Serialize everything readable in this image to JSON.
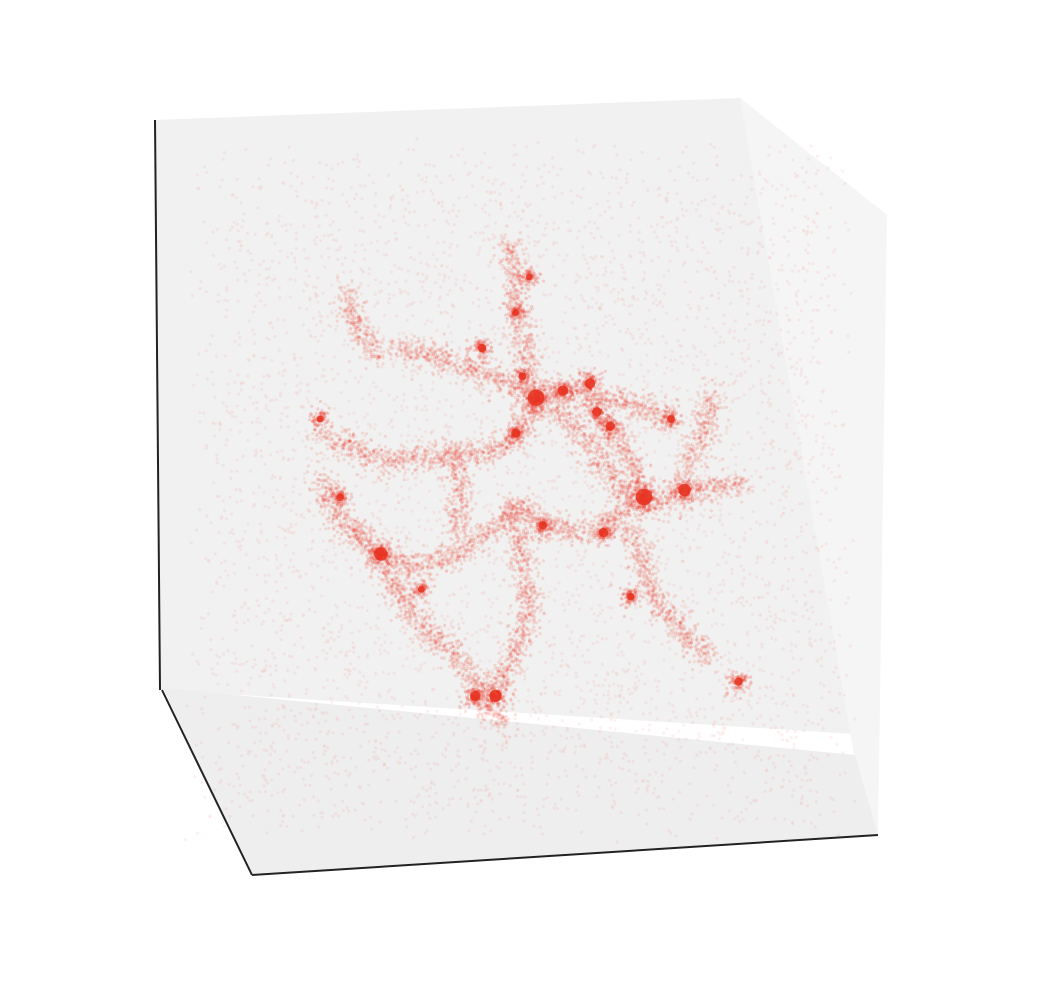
{
  "chart_data": {
    "type": "scatter",
    "projection": "3d",
    "title": "",
    "xlabel": "",
    "ylabel": "",
    "zlabel": "",
    "axis_ticks": "hidden",
    "grid": false,
    "legend": "none",
    "colors": {
      "points": "#e8301f",
      "pane_back": "#f1f1f1",
      "pane_side": "#f5f5f5",
      "pane_floor": "#eeeeee",
      "axis_line": "#222222"
    },
    "point_style": {
      "alpha": 0.06
    },
    "series": [
      {
        "name": "",
        "filaments": [
          {
            "path": [
              [
                0.31,
                0.3
              ],
              [
                0.37,
                0.31
              ],
              [
                0.43,
                0.33
              ],
              [
                0.5,
                0.36
              ],
              [
                0.55,
                0.39
              ]
            ]
          },
          {
            "path": [
              [
                0.48,
                0.15
              ],
              [
                0.49,
                0.22
              ],
              [
                0.5,
                0.28
              ],
              [
                0.51,
                0.34
              ]
            ]
          },
          {
            "path": [
              [
                0.52,
                0.37
              ],
              [
                0.57,
                0.36
              ],
              [
                0.62,
                0.37
              ],
              [
                0.67,
                0.38
              ],
              [
                0.72,
                0.4
              ]
            ]
          },
          {
            "path": [
              [
                0.52,
                0.38
              ],
              [
                0.5,
                0.42
              ],
              [
                0.47,
                0.44
              ],
              [
                0.4,
                0.45
              ],
              [
                0.3,
                0.46
              ],
              [
                0.2,
                0.42
              ]
            ]
          },
          {
            "path": [
              [
                0.56,
                0.39
              ],
              [
                0.6,
                0.44
              ],
              [
                0.63,
                0.48
              ],
              [
                0.66,
                0.51
              ],
              [
                0.7,
                0.52
              ],
              [
                0.75,
                0.5
              ],
              [
                0.83,
                0.49
              ]
            ]
          },
          {
            "path": [
              [
                0.62,
                0.4
              ],
              [
                0.65,
                0.44
              ],
              [
                0.68,
                0.5
              ]
            ]
          },
          {
            "path": [
              [
                0.68,
                0.51
              ],
              [
                0.64,
                0.54
              ],
              [
                0.59,
                0.56
              ],
              [
                0.53,
                0.55
              ],
              [
                0.49,
                0.52
              ]
            ]
          },
          {
            "path": [
              [
                0.49,
                0.52
              ],
              [
                0.45,
                0.56
              ],
              [
                0.4,
                0.59
              ],
              [
                0.34,
                0.61
              ],
              [
                0.28,
                0.59
              ],
              [
                0.25,
                0.55
              ]
            ]
          },
          {
            "path": [
              [
                0.28,
                0.59
              ],
              [
                0.32,
                0.65
              ],
              [
                0.36,
                0.7
              ],
              [
                0.41,
                0.74
              ],
              [
                0.44,
                0.79
              ],
              [
                0.47,
                0.83
              ]
            ]
          },
          {
            "path": [
              [
                0.46,
                0.78
              ],
              [
                0.49,
                0.73
              ],
              [
                0.51,
                0.67
              ],
              [
                0.5,
                0.6
              ],
              [
                0.49,
                0.53
              ]
            ]
          },
          {
            "path": [
              [
                0.26,
                0.57
              ],
              [
                0.22,
                0.53
              ],
              [
                0.2,
                0.48
              ]
            ]
          },
          {
            "path": [
              [
                0.66,
                0.55
              ],
              [
                0.68,
                0.61
              ],
              [
                0.7,
                0.66
              ],
              [
                0.74,
                0.7
              ],
              [
                0.78,
                0.74
              ]
            ]
          },
          {
            "path": [
              [
                0.24,
                0.22
              ],
              [
                0.26,
                0.28
              ],
              [
                0.29,
                0.31
              ]
            ]
          },
          {
            "path": [
              [
                0.4,
                0.45
              ],
              [
                0.41,
                0.51
              ],
              [
                0.4,
                0.56
              ]
            ]
          },
          {
            "path": [
              [
                0.74,
                0.47
              ],
              [
                0.77,
                0.42
              ],
              [
                0.78,
                0.36
              ]
            ]
          }
        ],
        "halos": [
          {
            "x": 0.52,
            "y": 0.37,
            "size": 3.2
          },
          {
            "x": 0.68,
            "y": 0.51,
            "size": 3.2
          },
          {
            "x": 0.74,
            "y": 0.5,
            "size": 2.4
          },
          {
            "x": 0.29,
            "y": 0.59,
            "size": 2.6
          },
          {
            "x": 0.46,
            "y": 0.79,
            "size": 2.4
          },
          {
            "x": 0.43,
            "y": 0.79,
            "size": 2.0
          },
          {
            "x": 0.56,
            "y": 0.36,
            "size": 2.0
          },
          {
            "x": 0.6,
            "y": 0.35,
            "size": 2.0
          },
          {
            "x": 0.61,
            "y": 0.39,
            "size": 1.8
          },
          {
            "x": 0.63,
            "y": 0.41,
            "size": 1.8
          },
          {
            "x": 0.49,
            "y": 0.42,
            "size": 1.8
          },
          {
            "x": 0.62,
            "y": 0.56,
            "size": 1.8
          },
          {
            "x": 0.53,
            "y": 0.55,
            "size": 1.6
          },
          {
            "x": 0.44,
            "y": 0.3,
            "size": 1.6
          },
          {
            "x": 0.5,
            "y": 0.34,
            "size": 1.5
          },
          {
            "x": 0.72,
            "y": 0.4,
            "size": 1.5
          },
          {
            "x": 0.82,
            "y": 0.77,
            "size": 1.6
          },
          {
            "x": 0.23,
            "y": 0.51,
            "size": 1.5
          },
          {
            "x": 0.66,
            "y": 0.65,
            "size": 1.5
          },
          {
            "x": 0.35,
            "y": 0.64,
            "size": 1.3
          },
          {
            "x": 0.2,
            "y": 0.4,
            "size": 1.3
          },
          {
            "x": 0.49,
            "y": 0.25,
            "size": 1.3
          },
          {
            "x": 0.51,
            "y": 0.2,
            "size": 1.3
          }
        ]
      }
    ]
  }
}
